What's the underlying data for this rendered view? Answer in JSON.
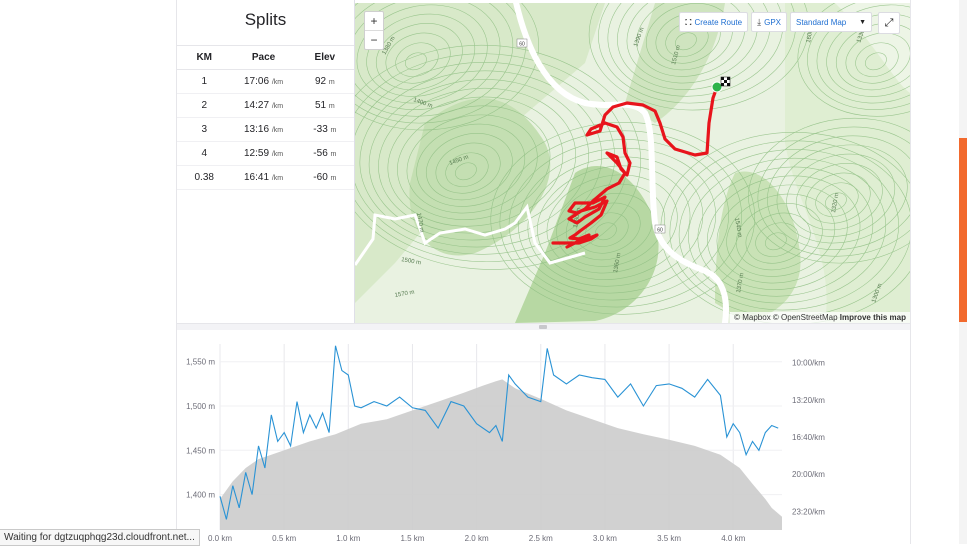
{
  "splits": {
    "title": "Splits",
    "headers": {
      "km": "KM",
      "pace": "Pace",
      "elev": "Elev"
    },
    "pace_unit": "/km",
    "elev_unit": "m",
    "rows": [
      {
        "km": "1",
        "pace": "17:06",
        "elev": "92"
      },
      {
        "km": "2",
        "pace": "14:27",
        "elev": "51"
      },
      {
        "km": "3",
        "pace": "13:16",
        "elev": "-33"
      },
      {
        "km": "4",
        "pace": "12:59",
        "elev": "-56"
      },
      {
        "km": "0.38",
        "pace": "16:41",
        "elev": "-60"
      }
    ]
  },
  "map": {
    "zoom_in": "+",
    "zoom_out": "−",
    "create_route": "Create Route",
    "gpx": "GPX",
    "map_style": "Standard Map",
    "fullscreen_icon": "expand-icon",
    "attribution": {
      "mapbox": "© Mapbox",
      "osm": "© OpenStreetMap",
      "improve": "Improve this map"
    },
    "contour_labels": [
      "1380 m",
      "1400 m",
      "1390 m",
      "1450 m",
      "1470 m",
      "1510 m",
      "1500 m",
      "1570 m",
      "1580 m",
      "1360 m",
      "1370 m",
      "1320 m",
      "1300 m",
      "1330 m",
      "1600 m",
      "1540 m"
    ],
    "route_badge": "60",
    "colors": {
      "route": "#e8141c",
      "start": "#2db34a",
      "road": "#ffffff"
    }
  },
  "chart_data": {
    "type": "line",
    "x_unit": "km",
    "x_ticks": [
      "0.0 km",
      "0.5 km",
      "1.0 km",
      "1.5 km",
      "2.0 km",
      "2.5 km",
      "3.0 km",
      "3.5 km",
      "4.0 km"
    ],
    "y_left_ticks": [
      "1,550 m",
      "1,500 m",
      "1,450 m",
      "1,400 m"
    ],
    "y_right_ticks": [
      "10:00/km",
      "13:20/km",
      "16:40/km",
      "20:00/km",
      "23:20/km"
    ],
    "xlim": [
      0,
      4.38
    ],
    "ylim_elevation": [
      1360,
      1570
    ],
    "ylim_pace_minutes": [
      8.33,
      25.0
    ],
    "pace_axis_inverted": true,
    "series": [
      {
        "kind": "area",
        "color": "#cccccc",
        "x": [
          0.0,
          0.1,
          0.2,
          0.3,
          0.4,
          0.5,
          0.7,
          0.9,
          1.1,
          1.3,
          1.5,
          1.7,
          1.9,
          2.05,
          2.15,
          2.2,
          2.3,
          2.5,
          2.7,
          2.9,
          3.1,
          3.3,
          3.5,
          3.7,
          3.9,
          4.05,
          4.15,
          4.25,
          4.3,
          4.38
        ],
        "y": [
          1395,
          1415,
          1430,
          1440,
          1445,
          1450,
          1460,
          1468,
          1480,
          1485,
          1495,
          1505,
          1515,
          1523,
          1528,
          1530,
          1520,
          1508,
          1495,
          1485,
          1475,
          1468,
          1462,
          1455,
          1445,
          1430,
          1412,
          1395,
          1385,
          1375
        ]
      },
      {
        "kind": "line",
        "color": "#2a93d5",
        "x": [
          0.0,
          0.05,
          0.1,
          0.15,
          0.2,
          0.25,
          0.3,
          0.35,
          0.4,
          0.45,
          0.5,
          0.55,
          0.6,
          0.65,
          0.7,
          0.75,
          0.8,
          0.85,
          0.9,
          0.95,
          1.0,
          1.05,
          1.1,
          1.2,
          1.3,
          1.4,
          1.5,
          1.6,
          1.7,
          1.8,
          1.9,
          2.0,
          2.1,
          2.15,
          2.2,
          2.25,
          2.3,
          2.4,
          2.5,
          2.55,
          2.6,
          2.7,
          2.8,
          2.9,
          3.0,
          3.1,
          3.2,
          3.3,
          3.4,
          3.5,
          3.6,
          3.7,
          3.8,
          3.9,
          3.95,
          4.0,
          4.05,
          4.1,
          4.15,
          4.2,
          4.25,
          4.3,
          4.35
        ],
        "y": [
          1398,
          1372,
          1410,
          1385,
          1425,
          1400,
          1455,
          1430,
          1490,
          1460,
          1470,
          1455,
          1505,
          1470,
          1490,
          1475,
          1492,
          1470,
          1568,
          1540,
          1535,
          1500,
          1498,
          1505,
          1500,
          1510,
          1498,
          1495,
          1475,
          1505,
          1500,
          1480,
          1470,
          1478,
          1460,
          1535,
          1525,
          1510,
          1505,
          1565,
          1535,
          1525,
          1535,
          1532,
          1530,
          1510,
          1525,
          1500,
          1523,
          1525,
          1520,
          1510,
          1530,
          1512,
          1465,
          1480,
          1470,
          1445,
          1460,
          1450,
          1470,
          1478,
          1475
        ]
      }
    ]
  },
  "status_bar": {
    "text": "Waiting for dgtzuqphqg23d.cloudfront.net..."
  }
}
